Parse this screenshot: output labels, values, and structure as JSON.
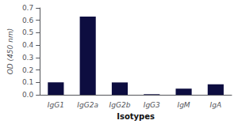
{
  "chart_data": {
    "type": "bar",
    "categories": [
      "IgG1",
      "IgG2a",
      "IgG2b",
      "IgG3",
      "IgM",
      "IgA"
    ],
    "values": [
      0.1,
      0.63,
      0.1,
      0.005,
      0.05,
      0.085
    ],
    "color": "#0d0d40",
    "xlabel": "Isotypes",
    "ylabel": "OD (450 nm)",
    "ylim": [
      0,
      0.7
    ],
    "yticks": [
      {
        "value": 0,
        "label": "0.0"
      },
      0.1,
      0.2,
      0.3,
      0.4,
      0.5,
      0.6,
      0.7
    ],
    "grid": false
  }
}
